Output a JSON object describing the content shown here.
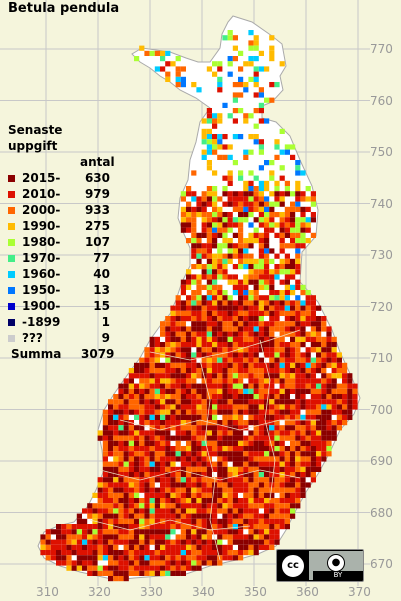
{
  "title": "Betula pendula",
  "legend": {
    "heading": "Senaste uppgift",
    "count_header": "antal",
    "items": [
      {
        "label": "2015-",
        "count": "630",
        "color": "#8b0000"
      },
      {
        "label": "2010-",
        "count": "979",
        "color": "#dd1100"
      },
      {
        "label": "2000-",
        "count": "933",
        "color": "#ff6600"
      },
      {
        "label": "1990-",
        "count": "275",
        "color": "#ffbb00"
      },
      {
        "label": "1980-",
        "count": "107",
        "color": "#aaff33"
      },
      {
        "label": "1970-",
        "count": "77",
        "color": "#44ee88"
      },
      {
        "label": "1960-",
        "count": "40",
        "color": "#00ccff"
      },
      {
        "label": "1950-",
        "count": "13",
        "color": "#0077ff"
      },
      {
        "label": "1900-",
        "count": "15",
        "color": "#0000cc"
      },
      {
        "label": "-1899",
        "count": "1",
        "color": "#000066"
      },
      {
        "label": "???",
        "count": "9",
        "color": "#cccccc"
      }
    ],
    "sum_label": "Summa",
    "sum_count": "3079"
  },
  "grid": {
    "y_labels": [
      "770",
      "760",
      "750",
      "740",
      "730",
      "720",
      "710",
      "700",
      "690",
      "680",
      "670"
    ],
    "x_labels": [
      "310",
      "320",
      "330",
      "340",
      "350",
      "360",
      "370"
    ]
  },
  "license": {
    "cc_text": "cc",
    "by_text": "BY",
    "by_icon": "person-icon"
  },
  "colors": {
    "background": "#f5f5dc",
    "land": "#ffffff",
    "grid": "#bbbbbb"
  }
}
